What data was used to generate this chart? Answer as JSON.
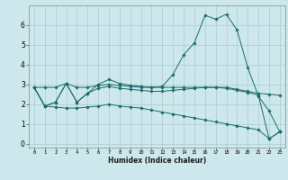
{
  "xlabel": "Humidex (Indice chaleur)",
  "background_color": "#cce8ec",
  "grid_color": "#aacccc",
  "line_color": "#1a6b6b",
  "x": [
    0,
    1,
    2,
    3,
    4,
    5,
    6,
    7,
    8,
    9,
    10,
    11,
    12,
    13,
    14,
    15,
    16,
    17,
    18,
    19,
    20,
    21,
    22,
    23
  ],
  "series1": [
    2.85,
    1.9,
    2.1,
    3.05,
    2.1,
    2.55,
    3.0,
    3.25,
    3.05,
    2.95,
    2.9,
    2.85,
    2.9,
    3.5,
    4.5,
    5.1,
    6.5,
    6.3,
    6.55,
    5.75,
    3.85,
    2.4,
    1.65,
    0.6
  ],
  "series2": [
    2.85,
    2.85,
    2.85,
    3.05,
    2.85,
    2.85,
    2.95,
    3.0,
    2.95,
    2.9,
    2.85,
    2.85,
    2.85,
    2.85,
    2.85,
    2.85,
    2.85,
    2.85,
    2.85,
    2.75,
    2.65,
    2.55,
    2.5,
    2.45
  ],
  "series3": [
    2.85,
    1.9,
    2.1,
    3.05,
    2.1,
    2.55,
    2.8,
    2.9,
    2.8,
    2.75,
    2.7,
    2.65,
    2.65,
    2.7,
    2.75,
    2.8,
    2.85,
    2.85,
    2.8,
    2.7,
    2.6,
    2.45,
    0.25,
    0.6
  ],
  "series4": [
    2.85,
    1.9,
    1.85,
    1.8,
    1.8,
    1.85,
    1.9,
    2.0,
    1.9,
    1.85,
    1.8,
    1.7,
    1.6,
    1.5,
    1.4,
    1.3,
    1.2,
    1.1,
    1.0,
    0.9,
    0.8,
    0.7,
    0.25,
    0.6
  ],
  "ylim": [
    -0.2,
    7.0
  ],
  "yticks": [
    0,
    1,
    2,
    3,
    4,
    5,
    6
  ],
  "xlim": [
    -0.5,
    23.5
  ]
}
